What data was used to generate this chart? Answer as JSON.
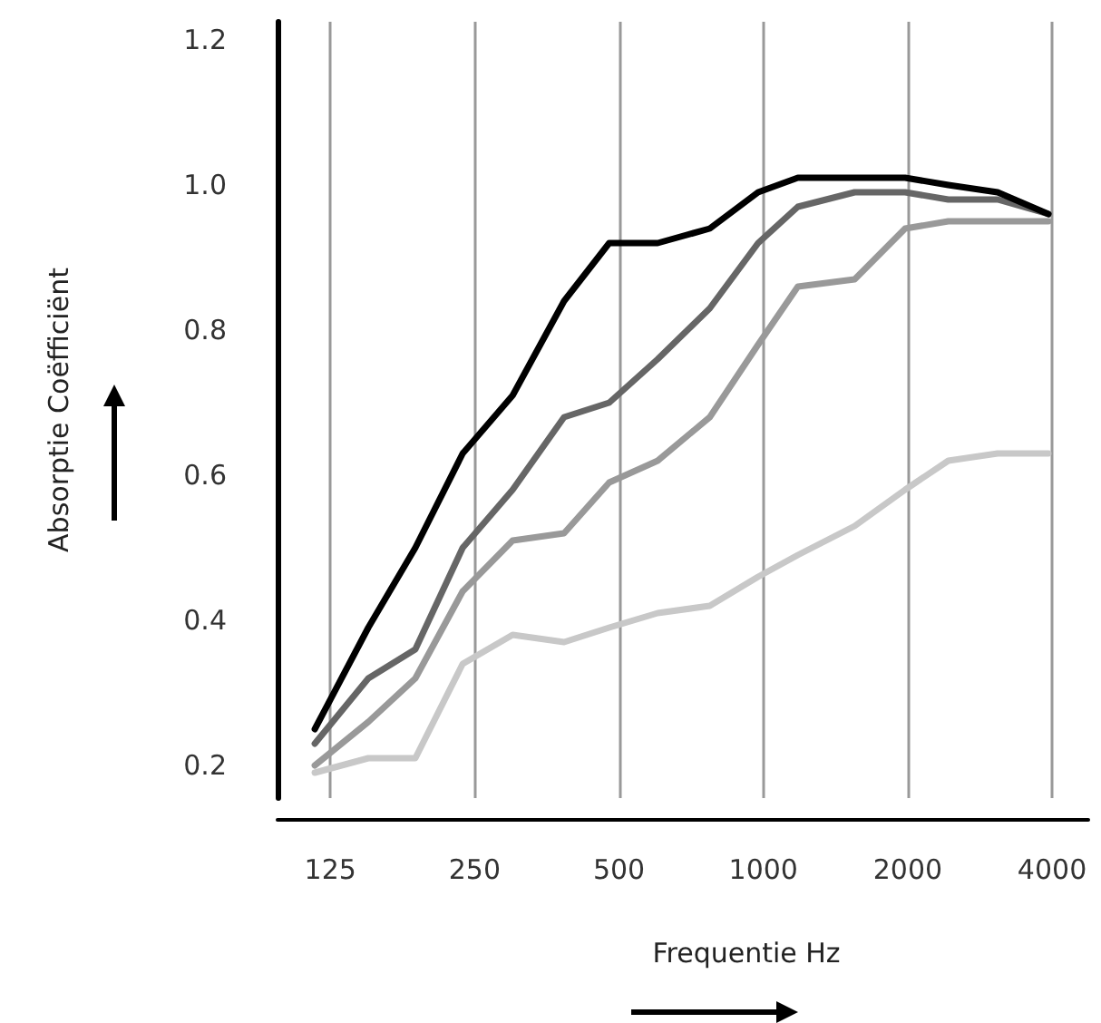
{
  "chart_data": {
    "type": "line",
    "xlabel": "Frequentie Hz",
    "ylabel": "Absorptie Coëfficiënt",
    "x": [
      116,
      150,
      188,
      236,
      300,
      384,
      477,
      602,
      773,
      975,
      1180,
      1550,
      1975,
      2430,
      3080,
      3930
    ],
    "series": [
      {
        "color": "#000000",
        "values": [
          0.25,
          0.39,
          0.5,
          0.63,
          0.71,
          0.84,
          0.92,
          0.92,
          0.94,
          0.99,
          1.01,
          1.01,
          1.01,
          1.0,
          0.99,
          0.96
        ]
      },
      {
        "color": "#666666",
        "values": [
          0.23,
          0.32,
          0.36,
          0.5,
          0.58,
          0.68,
          0.7,
          0.76,
          0.83,
          0.92,
          0.97,
          0.99,
          0.99,
          0.98,
          0.98,
          0.96
        ]
      },
      {
        "color": "#999999",
        "values": [
          0.2,
          0.26,
          0.32,
          0.44,
          0.51,
          0.52,
          0.59,
          0.62,
          0.68,
          0.78,
          0.86,
          0.87,
          0.94,
          0.95,
          0.95,
          0.95
        ]
      },
      {
        "color": "#c8c8c8",
        "values": [
          0.19,
          0.21,
          0.21,
          0.34,
          0.38,
          0.37,
          0.39,
          0.41,
          0.42,
          0.46,
          0.49,
          0.53,
          0.58,
          0.62,
          0.63,
          0.63
        ]
      }
    ],
    "log": "x",
    "xlim": [
      97,
      4760
    ],
    "xticks": [
      125,
      250,
      500,
      1000,
      2000,
      4000
    ],
    "ylim": [
      0.155,
      1.225
    ],
    "yticks": [
      0.2,
      0.4,
      0.6,
      0.8,
      {
        "value": 1.0,
        "label": "1.0"
      },
      {
        "value": 1.2,
        "label": "1.2"
      }
    ],
    "grid": "x",
    "marker": "none",
    "line_style": "solid"
  }
}
